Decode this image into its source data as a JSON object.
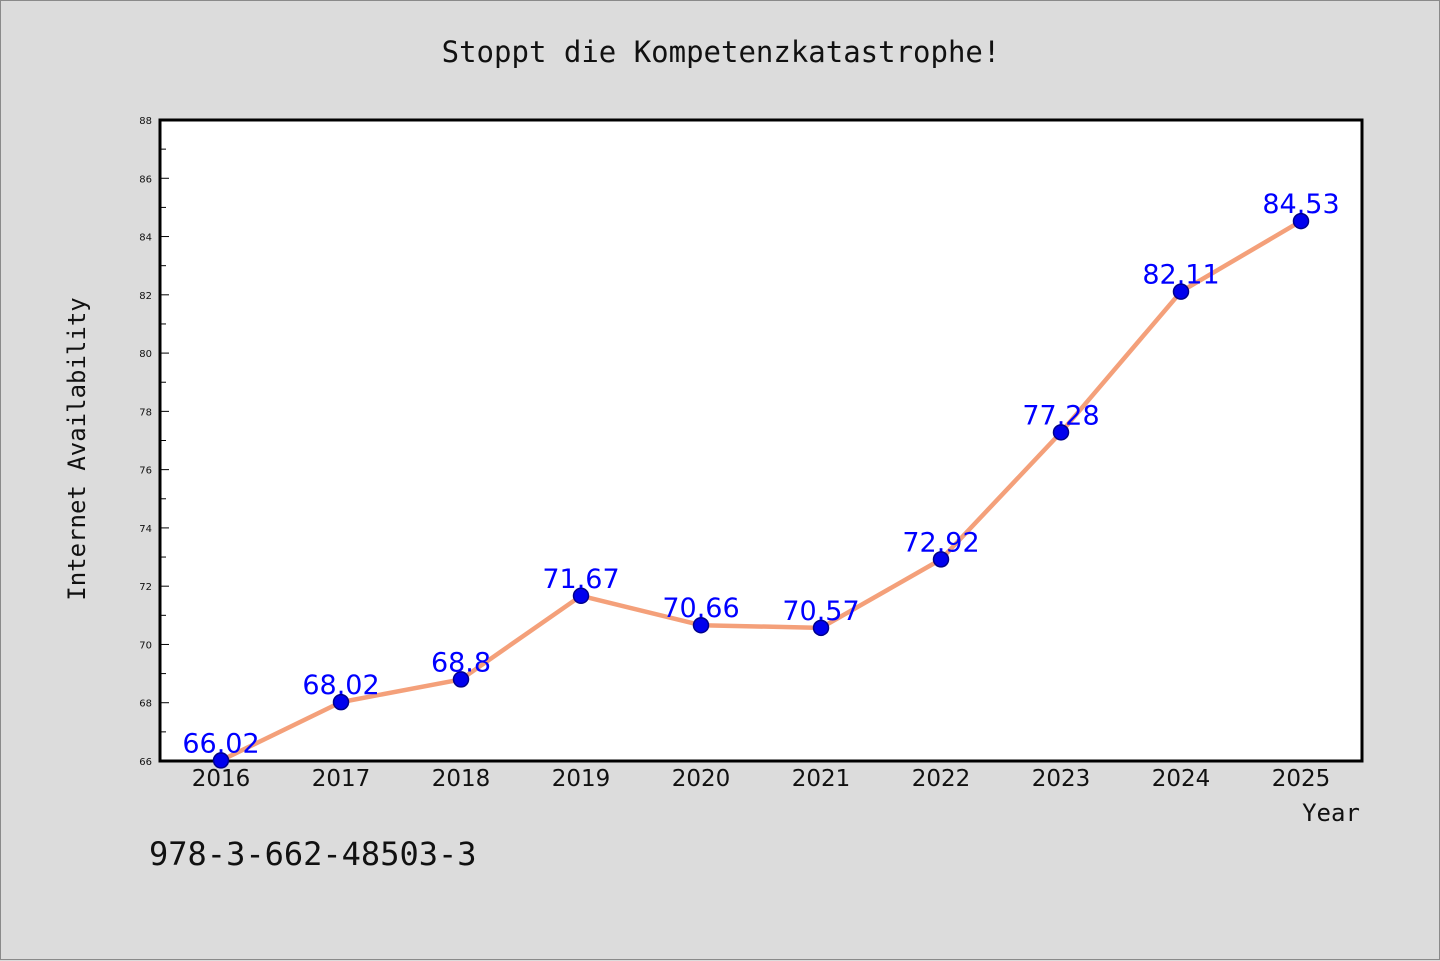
{
  "title": "Stoppt die Kompetenzkatastrophe!",
  "footer_text": "978-3-662-48503-3",
  "chart_data": {
    "type": "line",
    "title": "Stoppt die Kompetenzkatastrophe!",
    "xlabel": "Year",
    "ylabel": "Internet Availability",
    "categories": [
      "2016",
      "2017",
      "2018",
      "2019",
      "2020",
      "2021",
      "2022",
      "2023",
      "2024",
      "2025"
    ],
    "series": [
      {
        "values": [
          66.02,
          68.02,
          68.8,
          71.67,
          70.66,
          70.57,
          72.92,
          77.28,
          82.11,
          84.53
        ],
        "data_labels": [
          "66.02",
          "68.02",
          "68.8",
          "71.67",
          "70.66",
          "70.57",
          "72.92",
          "77.28",
          "82.11",
          "84.53"
        ]
      }
    ],
    "ylim": [
      66,
      88
    ],
    "yticks": [
      66,
      68,
      70,
      72,
      74,
      76,
      78,
      80,
      82,
      84,
      86,
      88
    ],
    "grid": false,
    "legend": "none",
    "colors": {
      "line": "#f4a07a",
      "marker_fill": "#0000ee",
      "marker_edge": "#00008b",
      "data_label": "#0000ff",
      "background": "#dcdcdc",
      "plot_background": "#ffffff"
    }
  }
}
